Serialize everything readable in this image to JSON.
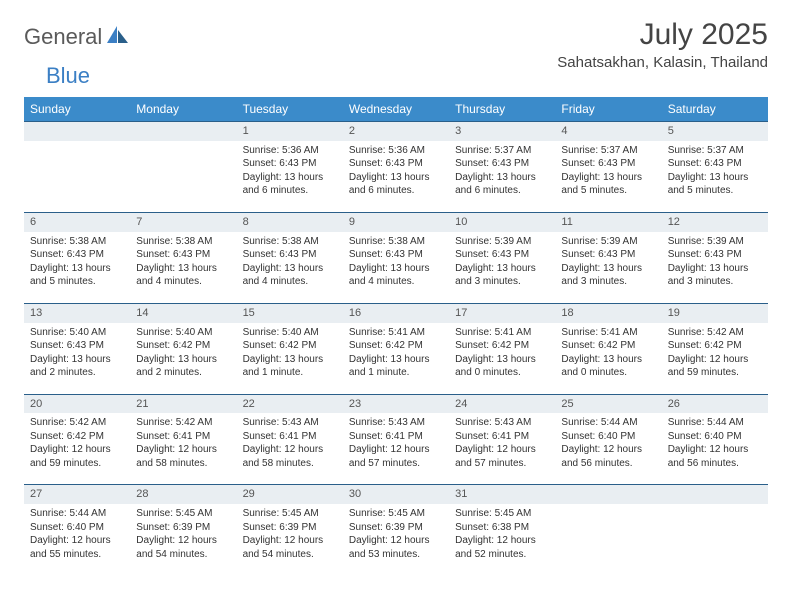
{
  "logo": {
    "part1": "General",
    "part2": "Blue"
  },
  "title": "July 2025",
  "location": "Sahatsakhan, Kalasin, Thailand",
  "colors": {
    "header_bg": "#3b8bca",
    "header_text": "#ffffff",
    "daynum_bg": "#e9eef2",
    "row_border": "#2a5f8a",
    "logo_gray": "#5a5a5a",
    "logo_blue": "#3b7fc4"
  },
  "weekdays": [
    "Sunday",
    "Monday",
    "Tuesday",
    "Wednesday",
    "Thursday",
    "Friday",
    "Saturday"
  ],
  "weeks": [
    [
      null,
      null,
      {
        "n": "1",
        "sr": "5:36 AM",
        "ss": "6:43 PM",
        "dl": "13 hours and 6 minutes."
      },
      {
        "n": "2",
        "sr": "5:36 AM",
        "ss": "6:43 PM",
        "dl": "13 hours and 6 minutes."
      },
      {
        "n": "3",
        "sr": "5:37 AM",
        "ss": "6:43 PM",
        "dl": "13 hours and 6 minutes."
      },
      {
        "n": "4",
        "sr": "5:37 AM",
        "ss": "6:43 PM",
        "dl": "13 hours and 5 minutes."
      },
      {
        "n": "5",
        "sr": "5:37 AM",
        "ss": "6:43 PM",
        "dl": "13 hours and 5 minutes."
      }
    ],
    [
      {
        "n": "6",
        "sr": "5:38 AM",
        "ss": "6:43 PM",
        "dl": "13 hours and 5 minutes."
      },
      {
        "n": "7",
        "sr": "5:38 AM",
        "ss": "6:43 PM",
        "dl": "13 hours and 4 minutes."
      },
      {
        "n": "8",
        "sr": "5:38 AM",
        "ss": "6:43 PM",
        "dl": "13 hours and 4 minutes."
      },
      {
        "n": "9",
        "sr": "5:38 AM",
        "ss": "6:43 PM",
        "dl": "13 hours and 4 minutes."
      },
      {
        "n": "10",
        "sr": "5:39 AM",
        "ss": "6:43 PM",
        "dl": "13 hours and 3 minutes."
      },
      {
        "n": "11",
        "sr": "5:39 AM",
        "ss": "6:43 PM",
        "dl": "13 hours and 3 minutes."
      },
      {
        "n": "12",
        "sr": "5:39 AM",
        "ss": "6:43 PM",
        "dl": "13 hours and 3 minutes."
      }
    ],
    [
      {
        "n": "13",
        "sr": "5:40 AM",
        "ss": "6:43 PM",
        "dl": "13 hours and 2 minutes."
      },
      {
        "n": "14",
        "sr": "5:40 AM",
        "ss": "6:42 PM",
        "dl": "13 hours and 2 minutes."
      },
      {
        "n": "15",
        "sr": "5:40 AM",
        "ss": "6:42 PM",
        "dl": "13 hours and 1 minute."
      },
      {
        "n": "16",
        "sr": "5:41 AM",
        "ss": "6:42 PM",
        "dl": "13 hours and 1 minute."
      },
      {
        "n": "17",
        "sr": "5:41 AM",
        "ss": "6:42 PM",
        "dl": "13 hours and 0 minutes."
      },
      {
        "n": "18",
        "sr": "5:41 AM",
        "ss": "6:42 PM",
        "dl": "13 hours and 0 minutes."
      },
      {
        "n": "19",
        "sr": "5:42 AM",
        "ss": "6:42 PM",
        "dl": "12 hours and 59 minutes."
      }
    ],
    [
      {
        "n": "20",
        "sr": "5:42 AM",
        "ss": "6:42 PM",
        "dl": "12 hours and 59 minutes."
      },
      {
        "n": "21",
        "sr": "5:42 AM",
        "ss": "6:41 PM",
        "dl": "12 hours and 58 minutes."
      },
      {
        "n": "22",
        "sr": "5:43 AM",
        "ss": "6:41 PM",
        "dl": "12 hours and 58 minutes."
      },
      {
        "n": "23",
        "sr": "5:43 AM",
        "ss": "6:41 PM",
        "dl": "12 hours and 57 minutes."
      },
      {
        "n": "24",
        "sr": "5:43 AM",
        "ss": "6:41 PM",
        "dl": "12 hours and 57 minutes."
      },
      {
        "n": "25",
        "sr": "5:44 AM",
        "ss": "6:40 PM",
        "dl": "12 hours and 56 minutes."
      },
      {
        "n": "26",
        "sr": "5:44 AM",
        "ss": "6:40 PM",
        "dl": "12 hours and 56 minutes."
      }
    ],
    [
      {
        "n": "27",
        "sr": "5:44 AM",
        "ss": "6:40 PM",
        "dl": "12 hours and 55 minutes."
      },
      {
        "n": "28",
        "sr": "5:45 AM",
        "ss": "6:39 PM",
        "dl": "12 hours and 54 minutes."
      },
      {
        "n": "29",
        "sr": "5:45 AM",
        "ss": "6:39 PM",
        "dl": "12 hours and 54 minutes."
      },
      {
        "n": "30",
        "sr": "5:45 AM",
        "ss": "6:39 PM",
        "dl": "12 hours and 53 minutes."
      },
      {
        "n": "31",
        "sr": "5:45 AM",
        "ss": "6:38 PM",
        "dl": "12 hours and 52 minutes."
      },
      null,
      null
    ]
  ]
}
